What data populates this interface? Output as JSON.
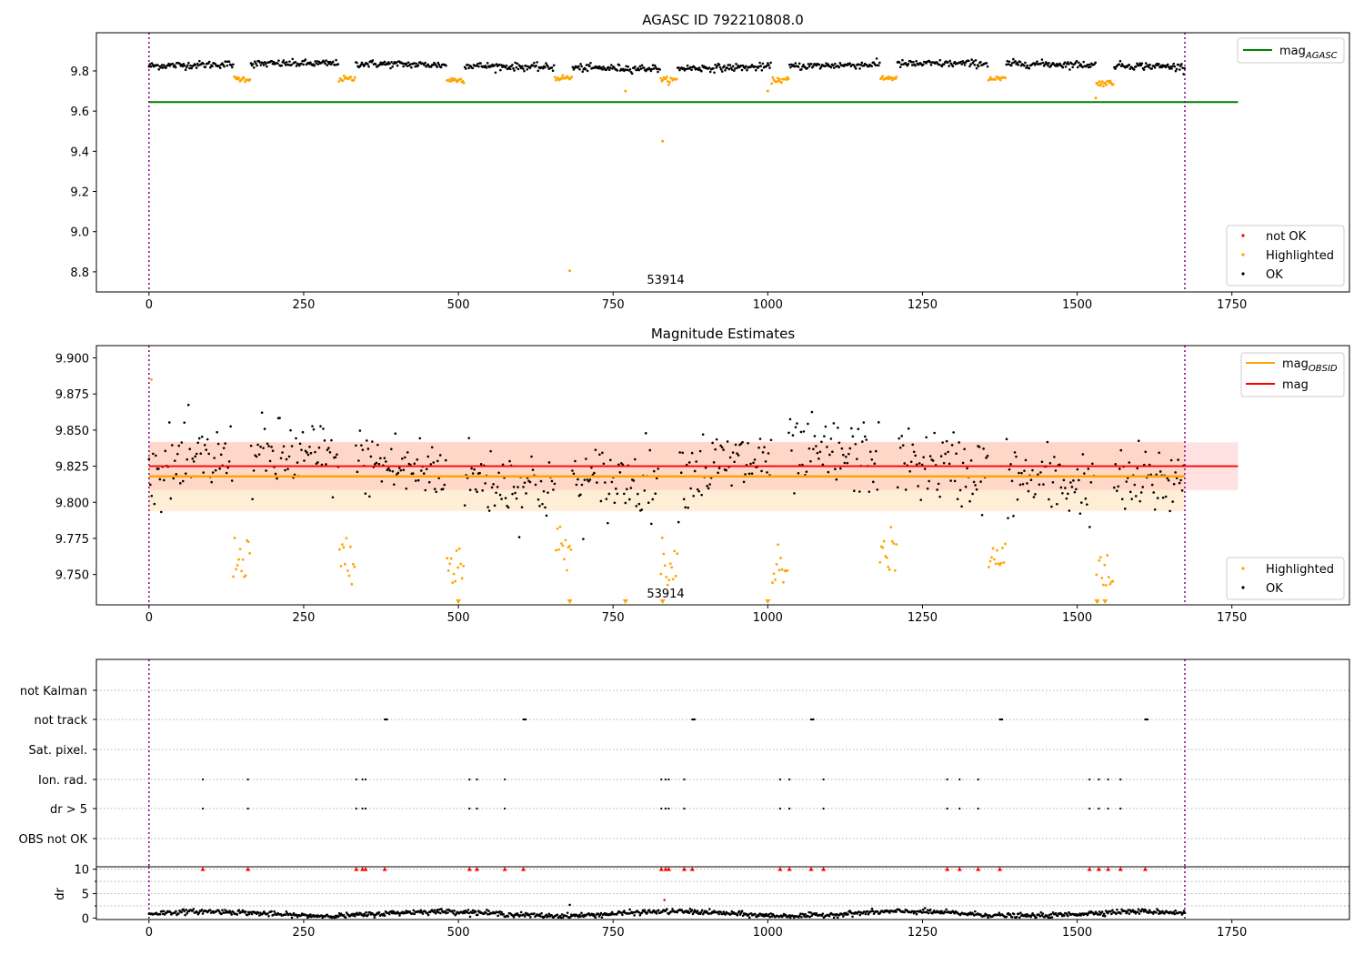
{
  "colors": {
    "ok": "#000000",
    "highlighted": "#ffa500",
    "not_ok": "#ff0000",
    "agasc_line": "#008000",
    "obsid_line": "#ffa500",
    "mag_line": "#ff0000",
    "obs_boundary": "#800080",
    "mag_band": "#ffb3b3",
    "obsid_band": "#ffd9a3",
    "flag_grid": "#b0b0b0"
  },
  "annotations": {
    "obsid_label": "53914"
  },
  "chart_data": [
    {
      "type": "scatter",
      "title": "AGASC ID 792210808.0",
      "xlim": [
        -85,
        1940
      ],
      "ylim": [
        8.7,
        9.99
      ],
      "x_ticks": [
        0,
        250,
        500,
        750,
        1000,
        1250,
        1500,
        1750
      ],
      "y_ticks": [
        8.8,
        9.0,
        9.2,
        9.4,
        9.6,
        9.8
      ],
      "y_tick_labels": [
        "8.8",
        "9.0",
        "9.2",
        "9.4",
        "9.6",
        "9.8"
      ],
      "obs_boundaries": [
        0,
        1674
      ],
      "mag_agasc": 9.645,
      "mag_agasc_x_range": [
        0,
        1760
      ],
      "series_mean": 9.825,
      "dip_centers": [
        150,
        320,
        495,
        670,
        840,
        1020,
        1195,
        1370,
        1545
      ],
      "dip_values": [
        9.76,
        9.76,
        9.755,
        9.765,
        9.755,
        9.755,
        9.765,
        9.76,
        9.74
      ],
      "outliers": [
        {
          "x": 680,
          "y": 8.805
        },
        {
          "x": 830,
          "y": 9.45
        },
        {
          "x": 770,
          "y": 9.7
        },
        {
          "x": 1000,
          "y": 9.7
        },
        {
          "x": 1530,
          "y": 9.665
        }
      ],
      "legend_top": [
        {
          "name": "mag",
          "sub": "AGASC",
          "marker": "line",
          "color": "#008000"
        }
      ],
      "legend_bottom": [
        {
          "name": "not OK",
          "marker": "dot",
          "color": "#ff0000"
        },
        {
          "name": "Highlighted",
          "marker": "dot",
          "color": "#ffa500"
        },
        {
          "name": "OK",
          "marker": "dot",
          "color": "#000000"
        }
      ]
    },
    {
      "type": "scatter",
      "title": "Magnitude Estimates",
      "xlim": [
        -85,
        1940
      ],
      "ylim": [
        9.729,
        9.9085
      ],
      "x_ticks": [
        0,
        250,
        500,
        750,
        1000,
        1250,
        1500,
        1750
      ],
      "y_ticks": [
        9.75,
        9.775,
        9.8,
        9.825,
        9.85,
        9.875,
        9.9
      ],
      "y_tick_labels": [
        "9.750",
        "9.775",
        "9.800",
        "9.825",
        "9.850",
        "9.875",
        "9.900"
      ],
      "obs_boundaries": [
        0,
        1674
      ],
      "mag": 9.825,
      "mag_band": [
        9.8085,
        9.8415
      ],
      "mag_x_range": [
        0,
        1760
      ],
      "mag_obsid": 9.818,
      "obsid_band": [
        9.794,
        9.842
      ],
      "obsid_x_range": [
        0,
        1674
      ],
      "dip_centers": [
        150,
        320,
        495,
        670,
        840,
        1020,
        1195,
        1370,
        1545
      ],
      "dip_values": [
        9.762,
        9.76,
        9.758,
        9.768,
        9.758,
        9.752,
        9.765,
        9.76,
        9.748
      ],
      "clipped_markers": [
        500,
        680,
        770,
        830,
        1000,
        1532,
        1545
      ],
      "legend_top": [
        {
          "name": "mag",
          "sub": "OBSID",
          "marker": "line",
          "color": "#ffa500"
        },
        {
          "name": "mag",
          "sub": "",
          "marker": "line",
          "color": "#ff0000"
        }
      ],
      "legend_bottom": [
        {
          "name": "Highlighted",
          "marker": "dot",
          "color": "#ffa500"
        },
        {
          "name": "OK",
          "marker": "dot",
          "color": "#000000"
        }
      ]
    },
    {
      "type": "scatter",
      "title": "",
      "xlim": [
        -85,
        1940
      ],
      "categories": [
        "not Kalman",
        "not track",
        "Sat. pixel.",
        "Ion. rad.",
        "dr > 5",
        "OBS not OK"
      ],
      "flag_x": {
        "not track": [
          381,
          605,
          878,
          1070,
          1375,
          1610
        ],
        "Ion. rad.": [
          87,
          160,
          335,
          345,
          350,
          518,
          530,
          575,
          828,
          835,
          840,
          865,
          1020,
          1035,
          1090,
          1290,
          1310,
          1340,
          1520,
          1535,
          1550,
          1570
        ],
        "dr > 5": [
          87,
          160,
          335,
          345,
          350,
          518,
          530,
          575,
          828,
          835,
          840,
          865,
          1020,
          1035,
          1090,
          1290,
          1310,
          1340,
          1520,
          1535,
          1550,
          1570
        ]
      },
      "obs_boundaries": [
        0,
        1674
      ]
    },
    {
      "type": "scatter",
      "title": "",
      "xlim": [
        -85,
        1940
      ],
      "ylim": [
        -0.3,
        10.5
      ],
      "x_ticks": [
        0,
        250,
        500,
        750,
        1000,
        1250,
        1500,
        1750
      ],
      "y_ticks": [
        0,
        5,
        10
      ],
      "y_tick_labels": [
        "0",
        "5",
        "10"
      ],
      "ylabel": "dr",
      "obs_boundaries": [
        0,
        1674
      ],
      "capped_value": 10,
      "capped_x": [
        87,
        160,
        335,
        345,
        350,
        381,
        518,
        530,
        575,
        605,
        828,
        835,
        840,
        865,
        878,
        1020,
        1035,
        1070,
        1090,
        1290,
        1310,
        1340,
        1375,
        1520,
        1535,
        1550,
        1570,
        1610
      ],
      "outliers": [
        {
          "x": 680,
          "y": 2.7
        },
        {
          "x": 833,
          "y": 3.7
        }
      ]
    }
  ]
}
